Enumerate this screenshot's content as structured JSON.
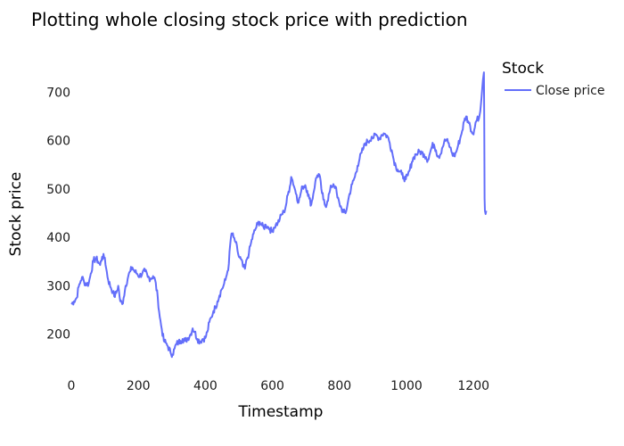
{
  "chart_data": {
    "type": "line",
    "title": "Plotting whole closing stock price with prediction",
    "xlabel": "Timestamp",
    "ylabel": "Stock price",
    "xlim": [
      0,
      1250
    ],
    "ylim": [
      120,
      780
    ],
    "x_ticks": [
      0,
      200,
      400,
      600,
      800,
      1000,
      1200
    ],
    "y_ticks": [
      200,
      300,
      400,
      500,
      600,
      700
    ],
    "grid": false,
    "legend": {
      "title": "Stock",
      "position": "top-right"
    },
    "series": [
      {
        "name": "Close price",
        "color": "#636efa",
        "points": [
          [
            0,
            262
          ],
          [
            8,
            268
          ],
          [
            16,
            275
          ],
          [
            22,
            298
          ],
          [
            28,
            310
          ],
          [
            32,
            318
          ],
          [
            38,
            308
          ],
          [
            46,
            303
          ],
          [
            52,
            305
          ],
          [
            58,
            325
          ],
          [
            66,
            352
          ],
          [
            74,
            356
          ],
          [
            80,
            350
          ],
          [
            86,
            343
          ],
          [
            92,
            360
          ],
          [
            100,
            358
          ],
          [
            104,
            336
          ],
          [
            110,
            312
          ],
          [
            118,
            296
          ],
          [
            124,
            288
          ],
          [
            128,
            278
          ],
          [
            134,
            285
          ],
          [
            140,
            300
          ],
          [
            146,
            268
          ],
          [
            152,
            262
          ],
          [
            156,
            275
          ],
          [
            162,
            300
          ],
          [
            170,
            320
          ],
          [
            176,
            330
          ],
          [
            182,
            338
          ],
          [
            188,
            330
          ],
          [
            196,
            325
          ],
          [
            204,
            320
          ],
          [
            212,
            326
          ],
          [
            220,
            330
          ],
          [
            228,
            318
          ],
          [
            236,
            315
          ],
          [
            244,
            320
          ],
          [
            250,
            312
          ],
          [
            258,
            275
          ],
          [
            264,
            235
          ],
          [
            270,
            210
          ],
          [
            276,
            186
          ],
          [
            282,
            182
          ],
          [
            288,
            175
          ],
          [
            296,
            162
          ],
          [
            302,
            158
          ],
          [
            308,
            170
          ],
          [
            314,
            180
          ],
          [
            320,
            183
          ],
          [
            326,
            186
          ],
          [
            332,
            190
          ],
          [
            340,
            186
          ],
          [
            348,
            192
          ],
          [
            356,
            200
          ],
          [
            362,
            212
          ],
          [
            368,
            205
          ],
          [
            376,
            190
          ],
          [
            384,
            185
          ],
          [
            392,
            190
          ],
          [
            400,
            192
          ],
          [
            406,
            205
          ],
          [
            412,
            225
          ],
          [
            418,
            235
          ],
          [
            424,
            248
          ],
          [
            430,
            255
          ],
          [
            436,
            268
          ],
          [
            442,
            280
          ],
          [
            448,
            292
          ],
          [
            454,
            300
          ],
          [
            460,
            312
          ],
          [
            466,
            330
          ],
          [
            470,
            345
          ],
          [
            474,
            385
          ],
          [
            478,
            408
          ],
          [
            484,
            400
          ],
          [
            490,
            390
          ],
          [
            496,
            372
          ],
          [
            500,
            360
          ],
          [
            506,
            355
          ],
          [
            512,
            340
          ],
          [
            518,
            335
          ],
          [
            524,
            355
          ],
          [
            530,
            368
          ],
          [
            536,
            388
          ],
          [
            544,
            408
          ],
          [
            550,
            418
          ],
          [
            556,
            428
          ],
          [
            562,
            432
          ],
          [
            568,
            425
          ],
          [
            574,
            420
          ],
          [
            580,
            426
          ],
          [
            586,
            422
          ],
          [
            592,
            418
          ],
          [
            598,
            412
          ],
          [
            604,
            420
          ],
          [
            610,
            426
          ],
          [
            616,
            430
          ],
          [
            622,
            438
          ],
          [
            628,
            448
          ],
          [
            634,
            452
          ],
          [
            640,
            465
          ],
          [
            646,
            488
          ],
          [
            652,
            505
          ],
          [
            656,
            525
          ],
          [
            660,
            518
          ],
          [
            666,
            502
          ],
          [
            672,
            488
          ],
          [
            678,
            472
          ],
          [
            684,
            490
          ],
          [
            690,
            505
          ],
          [
            698,
            508
          ],
          [
            704,
            496
          ],
          [
            710,
            480
          ],
          [
            716,
            468
          ],
          [
            722,
            490
          ],
          [
            728,
            515
          ],
          [
            734,
            528
          ],
          [
            740,
            530
          ],
          [
            746,
            500
          ],
          [
            752,
            478
          ],
          [
            758,
            465
          ],
          [
            764,
            475
          ],
          [
            770,
            492
          ],
          [
            776,
            505
          ],
          [
            782,
            510
          ],
          [
            788,
            505
          ],
          [
            794,
            482
          ],
          [
            800,
            470
          ],
          [
            806,
            460
          ],
          [
            812,
            452
          ],
          [
            818,
            450
          ],
          [
            824,
            468
          ],
          [
            830,
            490
          ],
          [
            838,
            510
          ],
          [
            846,
            525
          ],
          [
            854,
            548
          ],
          [
            860,
            562
          ],
          [
            866,
            575
          ],
          [
            872,
            585
          ],
          [
            878,
            595
          ],
          [
            884,
            598
          ],
          [
            890,
            600
          ],
          [
            896,
            608
          ],
          [
            902,
            606
          ],
          [
            908,
            612
          ],
          [
            914,
            608
          ],
          [
            920,
            605
          ],
          [
            926,
            612
          ],
          [
            932,
            615
          ],
          [
            938,
            612
          ],
          [
            944,
            608
          ],
          [
            950,
            595
          ],
          [
            956,
            580
          ],
          [
            962,
            560
          ],
          [
            968,
            548
          ],
          [
            974,
            540
          ],
          [
            980,
            536
          ],
          [
            986,
            530
          ],
          [
            992,
            524
          ],
          [
            998,
            520
          ],
          [
            1004,
            528
          ],
          [
            1010,
            540
          ],
          [
            1016,
            556
          ],
          [
            1022,
            566
          ],
          [
            1028,
            572
          ],
          [
            1034,
            574
          ],
          [
            1040,
            578
          ],
          [
            1046,
            574
          ],
          [
            1052,
            572
          ],
          [
            1058,
            566
          ],
          [
            1064,
            560
          ],
          [
            1070,
            574
          ],
          [
            1076,
            588
          ],
          [
            1082,
            592
          ],
          [
            1088,
            580
          ],
          [
            1094,
            568
          ],
          [
            1100,
            570
          ],
          [
            1106,
            584
          ],
          [
            1112,
            596
          ],
          [
            1118,
            602
          ],
          [
            1124,
            596
          ],
          [
            1130,
            586
          ],
          [
            1136,
            574
          ],
          [
            1142,
            568
          ],
          [
            1148,
            576
          ],
          [
            1154,
            590
          ],
          [
            1160,
            604
          ],
          [
            1166,
            620
          ],
          [
            1172,
            640
          ],
          [
            1178,
            650
          ],
          [
            1184,
            640
          ],
          [
            1190,
            630
          ],
          [
            1196,
            615
          ],
          [
            1202,
            622
          ],
          [
            1208,
            640
          ],
          [
            1212,
            650
          ],
          [
            1216,
            645
          ],
          [
            1220,
            660
          ],
          [
            1224,
            690
          ],
          [
            1228,
            725
          ],
          [
            1231,
            741
          ],
          [
            1232,
            640
          ],
          [
            1233,
            480
          ],
          [
            1234,
            455
          ],
          [
            1238,
            455
          ]
        ]
      }
    ]
  }
}
